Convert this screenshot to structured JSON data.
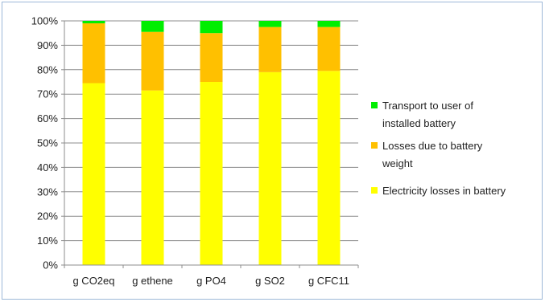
{
  "chart_data": {
    "type": "bar",
    "stacked": true,
    "categories": [
      "g CO2eq",
      "g ethene",
      "g PO4",
      "g SO2",
      "g CFC11"
    ],
    "series": [
      {
        "name": "Electricity losses in battery",
        "color": "#ffff00",
        "values": [
          74.5,
          71.5,
          75.0,
          79.0,
          79.5
        ]
      },
      {
        "name": "Losses due to battery weight",
        "color": "#ffc000",
        "values": [
          24.5,
          24.0,
          20.0,
          18.5,
          18.0
        ]
      },
      {
        "name": "Transport to user of installed battery",
        "color": "#00ee00",
        "values": [
          1.0,
          4.5,
          5.0,
          2.5,
          2.5
        ]
      }
    ],
    "legend_order": [
      2,
      1,
      0
    ],
    "legend_lines": [
      [
        "Transport to user of",
        "installed battery"
      ],
      [
        "Losses due to battery",
        "weight"
      ],
      [
        "Electricity losses in battery"
      ]
    ],
    "y_ticks": [
      "0%",
      "10%",
      "20%",
      "30%",
      "40%",
      "50%",
      "60%",
      "70%",
      "80%",
      "90%",
      "100%"
    ],
    "ylim": [
      0,
      100
    ],
    "grid": true,
    "legend_position": "right",
    "gridline_color": "#8c8c8c",
    "axis_color": "#8c8c8c"
  }
}
